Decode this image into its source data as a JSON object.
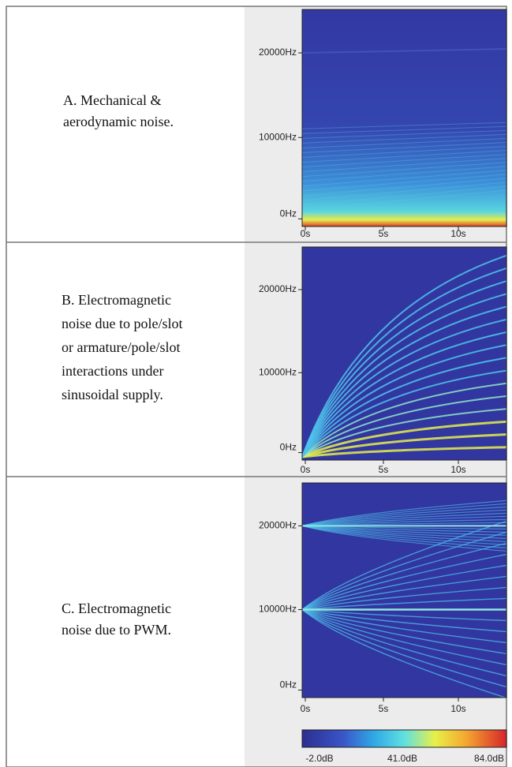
{
  "panels": [
    {
      "caption": [
        "A. Mechanical &",
        "aerodynamic noise."
      ],
      "y_axis": [
        "20000Hz",
        "10000Hz",
        "0Hz"
      ],
      "x_axis": [
        "0s",
        "5s",
        "10s"
      ]
    },
    {
      "caption": [
        "B. Electromagnetic",
        "noise due to pole/slot",
        "or armature/pole/slot",
        "interactions under",
        "sinusoidal supply."
      ],
      "y_axis": [
        "20000Hz",
        "10000Hz",
        "0Hz"
      ],
      "x_axis": [
        "0s",
        "5s",
        "10s"
      ]
    },
    {
      "caption": [
        "C. Electromagnetic",
        "noise due to PWM."
      ],
      "y_axis": [
        "20000Hz",
        "10000Hz",
        "0Hz"
      ],
      "x_axis": [
        "0s",
        "5s",
        "10s"
      ]
    }
  ],
  "colorbar": {
    "labels": [
      "-2.0dB",
      "41.0dB",
      "84.0dB"
    ]
  }
}
